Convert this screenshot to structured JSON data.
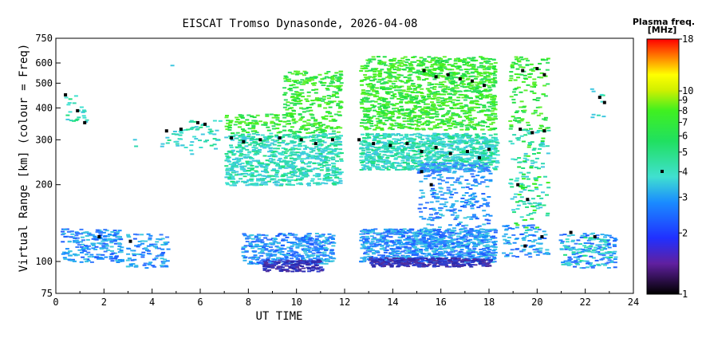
{
  "chart_data": {
    "type": "scatter",
    "title": "EISCAT Tromso Dynasonde, 2026-04-08",
    "xlabel": "UT TIME",
    "ylabel": "Virtual Range [km] (colour = Freq)",
    "xlim": [
      0,
      24
    ],
    "ylim": [
      75,
      750
    ],
    "yscale": "log",
    "grid": false,
    "xticks": [
      "0",
      "2",
      "4",
      "6",
      "8",
      "10",
      "12",
      "14",
      "16",
      "18",
      "20",
      "22",
      "24"
    ],
    "yticks": [
      "75",
      "100",
      "200",
      "300",
      "400",
      "500",
      "600",
      "750"
    ],
    "colorbar": {
      "title": "Plasma freq.",
      "unit": "[MHz]",
      "scale": "log",
      "range": [
        1,
        18
      ],
      "ticks": [
        "1",
        "2",
        "3",
        "4",
        "5",
        "6",
        "7",
        "8",
        "9",
        "10",
        "18"
      ]
    },
    "colors": {
      "low": "#000000",
      "mid_low": "#3030ff",
      "mid": "#40e0d0",
      "mid_high": "#20e020",
      "high": "#ff0000"
    },
    "series": [
      {
        "name": "",
        "marker": "black",
        "points": [
          [
            0.4,
            450
          ],
          [
            0.9,
            390
          ],
          [
            1.2,
            350
          ],
          [
            4.6,
            325
          ],
          [
            5.2,
            330
          ],
          [
            5.9,
            350
          ],
          [
            6.2,
            345
          ],
          [
            7.3,
            305
          ],
          [
            7.8,
            295
          ],
          [
            8.5,
            300
          ],
          [
            9.3,
            305
          ],
          [
            10.2,
            300
          ],
          [
            10.8,
            290
          ],
          [
            11.5,
            300
          ],
          [
            12.6,
            300
          ],
          [
            13.2,
            290
          ],
          [
            13.9,
            285
          ],
          [
            14.6,
            290
          ],
          [
            15.2,
            270
          ],
          [
            15.8,
            280
          ],
          [
            16.4,
            265
          ],
          [
            17.1,
            270
          ],
          [
            17.6,
            255
          ],
          [
            18.0,
            275
          ],
          [
            15.3,
            560
          ],
          [
            15.8,
            530
          ],
          [
            16.3,
            540
          ],
          [
            16.8,
            520
          ],
          [
            17.3,
            510
          ],
          [
            17.8,
            490
          ],
          [
            19.3,
            330
          ],
          [
            19.8,
            320
          ],
          [
            20.3,
            325
          ],
          [
            19.4,
            560
          ],
          [
            20.0,
            570
          ],
          [
            20.3,
            540
          ],
          [
            19.2,
            200
          ],
          [
            19.6,
            175
          ],
          [
            15.2,
            225
          ],
          [
            15.6,
            200
          ],
          [
            1.8,
            125
          ],
          [
            3.1,
            120
          ],
          [
            21.4,
            130
          ],
          [
            22.4,
            125
          ],
          [
            22.6,
            440
          ],
          [
            22.8,
            420
          ],
          [
            19.5,
            115
          ],
          [
            20.2,
            125
          ]
        ]
      }
    ]
  }
}
